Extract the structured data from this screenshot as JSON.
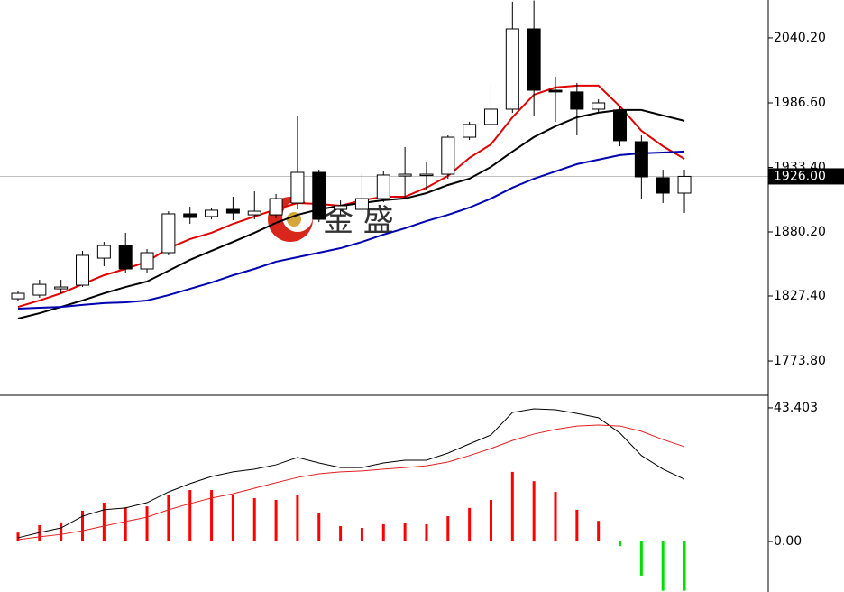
{
  "chart_data": [
    {
      "type": "candlestick",
      "categories": [
        null,
        null,
        null,
        null,
        null,
        null,
        null,
        null,
        null,
        null,
        null,
        null,
        null,
        null,
        null,
        null,
        null,
        null,
        null,
        null,
        null,
        null,
        null,
        null,
        null,
        null,
        null,
        null,
        null,
        null,
        null,
        null
      ],
      "open": [
        1825.1,
        1828.1,
        1833.3,
        1836.3,
        1858.6,
        1869.0,
        1849.7,
        1863.1,
        1895.1,
        1892.9,
        1898.8,
        1894.3,
        1894.3,
        1904.0,
        1929.3,
        1898.8,
        1898.8,
        1907.7,
        1926.3,
        1927.1,
        1927.8,
        1958.3,
        1968.8,
        1981.4,
        2047.6,
        1997.0,
        1995.6,
        1981.4,
        1980.7,
        1954.6,
        1924.9,
        1912.2
      ],
      "high": [
        1831.8,
        1840.8,
        1840.8,
        1864.6,
        1872.0,
        1879.5,
        1866.1,
        1897.3,
        1901.0,
        1900.3,
        1909.2,
        1913.7,
        1911.5,
        1975.4,
        1931.5,
        1906.2,
        1928.6,
        1930.1,
        1950.2,
        1937.5,
        1959.8,
        1971.0,
        2002.2,
        2070.0,
        2071.0,
        2008.2,
        2003.0,
        1989.6,
        1983.6,
        1959.8,
        1931.5,
        1931.5
      ],
      "low": [
        1822.9,
        1825.9,
        1829.6,
        1834.8,
        1851.9,
        1846.7,
        1846.7,
        1860.9,
        1886.9,
        1890.6,
        1889.9,
        1890.6,
        1891.4,
        1898.8,
        1888.4,
        1894.3,
        1895.8,
        1904.8,
        1907.7,
        1915.2,
        1924.1,
        1956.1,
        1961.3,
        1978.4,
        1976.2,
        1971.0,
        1959.8,
        1978.4,
        1950.9,
        1907.7,
        1904.0,
        1895.8
      ],
      "close": [
        1829.6,
        1837.0,
        1834.8,
        1860.9,
        1869.0,
        1849.7,
        1863.1,
        1895.1,
        1892.1,
        1898.1,
        1895.8,
        1897.3,
        1907.7,
        1929.3,
        1890.6,
        1901.8,
        1907.7,
        1927.1,
        1927.8,
        1927.8,
        1958.3,
        1968.8,
        1981.4,
        2047.6,
        1997.0,
        1995.6,
        1981.4,
        1986.6,
        1955.4,
        1925.6,
        1912.2,
        1926.0
      ],
      "lines": [
        {
          "color": "#e00000",
          "values": [
            1818.4,
            1823.7,
            1829.6,
            1837.1,
            1844.5,
            1849.7,
            1855.7,
            1866.8,
            1874.3,
            1879.5,
            1886.9,
            1892.9,
            1898.8,
            1904.0,
            1903.3,
            1901.8,
            1906.3,
            1909.2,
            1909.2,
            1916.7,
            1926.4,
            1941.3,
            1952.4,
            1974.7,
            1993.3,
            1999.3,
            2000.8,
            2000.8,
            1983.7,
            1963.6,
            1950.9,
            1940.5
          ]
        },
        {
          "color": "#000000",
          "values": [
            1808.8,
            1813.2,
            1818.4,
            1823.7,
            1829.6,
            1834.8,
            1839.3,
            1848.2,
            1857.2,
            1864.6,
            1872.0,
            1879.5,
            1887.7,
            1894.3,
            1898.8,
            1901.8,
            1904.0,
            1906.3,
            1907.8,
            1912.2,
            1918.9,
            1924.1,
            1933.8,
            1946.5,
            1958.4,
            1967.3,
            1974.7,
            1978.5,
            1980.7,
            1980.7,
            1976.2,
            1971.8
          ]
        },
        {
          "color": "#0000b0",
          "values": [
            1817.0,
            1817.7,
            1818.4,
            1820.0,
            1821.5,
            1822.2,
            1823.7,
            1828.1,
            1833.3,
            1838.5,
            1844.5,
            1849.7,
            1855.7,
            1859.4,
            1863.1,
            1866.8,
            1872.0,
            1878.0,
            1883.2,
            1889.2,
            1894.3,
            1900.3,
            1907.7,
            1916.7,
            1924.1,
            1930.1,
            1936.1,
            1939.8,
            1943.5,
            1945.0,
            1945.7,
            1946.5
          ]
        }
      ],
      "ylim": [
        1746.3,
        2071.4
      ],
      "yticks": [
        {
          "value": 2040.2,
          "label": "2040.20"
        },
        {
          "value": 1986.6,
          "label": "1986.60"
        },
        {
          "value": 1933.4,
          "label": "1933.40"
        },
        {
          "value": 1880.2,
          "label": "1880.20"
        },
        {
          "value": 1827.4,
          "label": "1827.40"
        },
        {
          "value": 1773.8,
          "label": "1773.80"
        }
      ],
      "current_price": {
        "value": 1926.0,
        "label": "1926.00"
      },
      "watermark": "金 盛"
    },
    {
      "type": "macd",
      "categories": [
        null,
        null,
        null,
        null,
        null,
        null,
        null,
        null,
        null,
        null,
        null,
        null,
        null,
        null,
        null,
        null,
        null,
        null,
        null,
        null,
        null,
        null,
        null,
        null,
        null,
        null,
        null,
        null,
        null,
        null,
        null,
        null
      ],
      "values": [
        2.9,
        5.3,
        6.2,
        10.0,
        12.6,
        11.1,
        11.4,
        15.2,
        16.7,
        16.7,
        15.2,
        14.1,
        13.5,
        15.0,
        9.1,
        5.0,
        4.4,
        5.6,
        5.9,
        5.6,
        8.2,
        10.9,
        13.5,
        22.6,
        19.6,
        16.1,
        10.3,
        6.7,
        -1.5,
        -11.1,
        -16.0,
        -16.0
      ],
      "color": "#ff0000",
      "negative_color": "#00e000",
      "lines": [
        {
          "color": "#000000",
          "values": [
            1.2,
            2.9,
            4.4,
            8.2,
            10.3,
            10.9,
            12.6,
            16.1,
            18.8,
            21.1,
            22.6,
            23.5,
            24.9,
            27.3,
            25.5,
            24.0,
            24.0,
            25.5,
            26.4,
            26.4,
            28.7,
            31.7,
            34.6,
            41.9,
            43.1,
            42.8,
            41.6,
            40.2,
            35.2,
            27.9,
            23.5,
            20.2
          ]
        },
        {
          "color": "#e02020",
          "values": [
            0.6,
            1.5,
            2.3,
            3.5,
            5.0,
            6.5,
            7.9,
            10.3,
            12.3,
            14.1,
            15.5,
            17.3,
            19.1,
            20.8,
            22.0,
            22.6,
            22.9,
            23.5,
            24.0,
            24.6,
            25.8,
            27.9,
            30.2,
            32.8,
            34.9,
            36.4,
            37.5,
            37.8,
            37.5,
            35.8,
            33.1,
            30.8
          ]
        }
      ],
      "ylim": [
        -16.4,
        46.9
      ],
      "yticks": [
        43.403,
        {
          "value": 0,
          "label": "0.00"
        }
      ]
    }
  ]
}
